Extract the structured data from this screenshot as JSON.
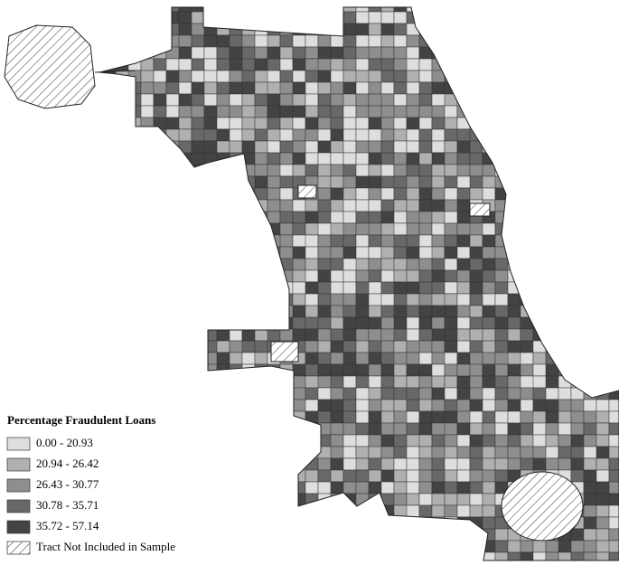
{
  "legend": {
    "title": "Percentage Fraudulent Loans",
    "items": [
      {
        "label": "0.00 - 20.93",
        "color": "#dedede"
      },
      {
        "label": "20.94 - 26.42",
        "color": "#b0b0b0"
      },
      {
        "label": "26.43 - 30.77",
        "color": "#8e8e8e"
      },
      {
        "label": "30.78 - 35.71",
        "color": "#686868"
      },
      {
        "label": "35.72 - 57.14",
        "color": "#434343"
      }
    ],
    "excluded": "Tract Not Included in Sample"
  }
}
